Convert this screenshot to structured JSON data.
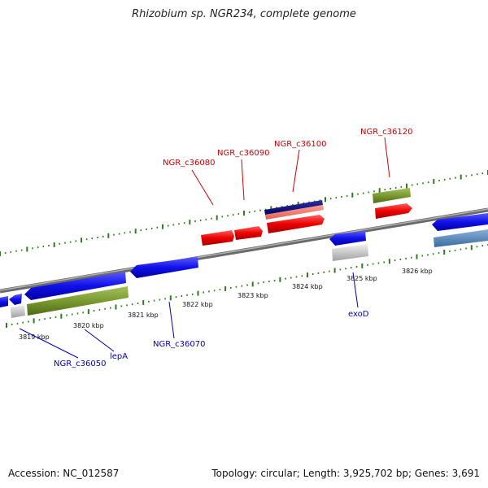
{
  "title": "Rhizobium sp. NGR234, complete genome",
  "footer": {
    "accession": "Accession: NC_012587",
    "summary": "Topology: circular; Length: 3,925,702 bp; Genes: 3,691"
  },
  "colors": {
    "plus_label": "#cc0000",
    "minus_label": "#0000aa",
    "tick": "#2e7d1e",
    "backbone": "#808080"
  },
  "scale_labels": [
    "3819 kbp",
    "3820 kbp",
    "3821 kbp",
    "3822 kbp",
    "3823 kbp",
    "3824 kbp",
    "3825 kbp",
    "3826 kbp"
  ],
  "gene_labels": {
    "plus": [
      "NGR_c36080",
      "NGR_c36090",
      "NGR_c36100",
      "NGR_c36120"
    ],
    "minus": [
      "NGR_c36050",
      "lepA",
      "NGR_c36070",
      "exoD"
    ]
  }
}
